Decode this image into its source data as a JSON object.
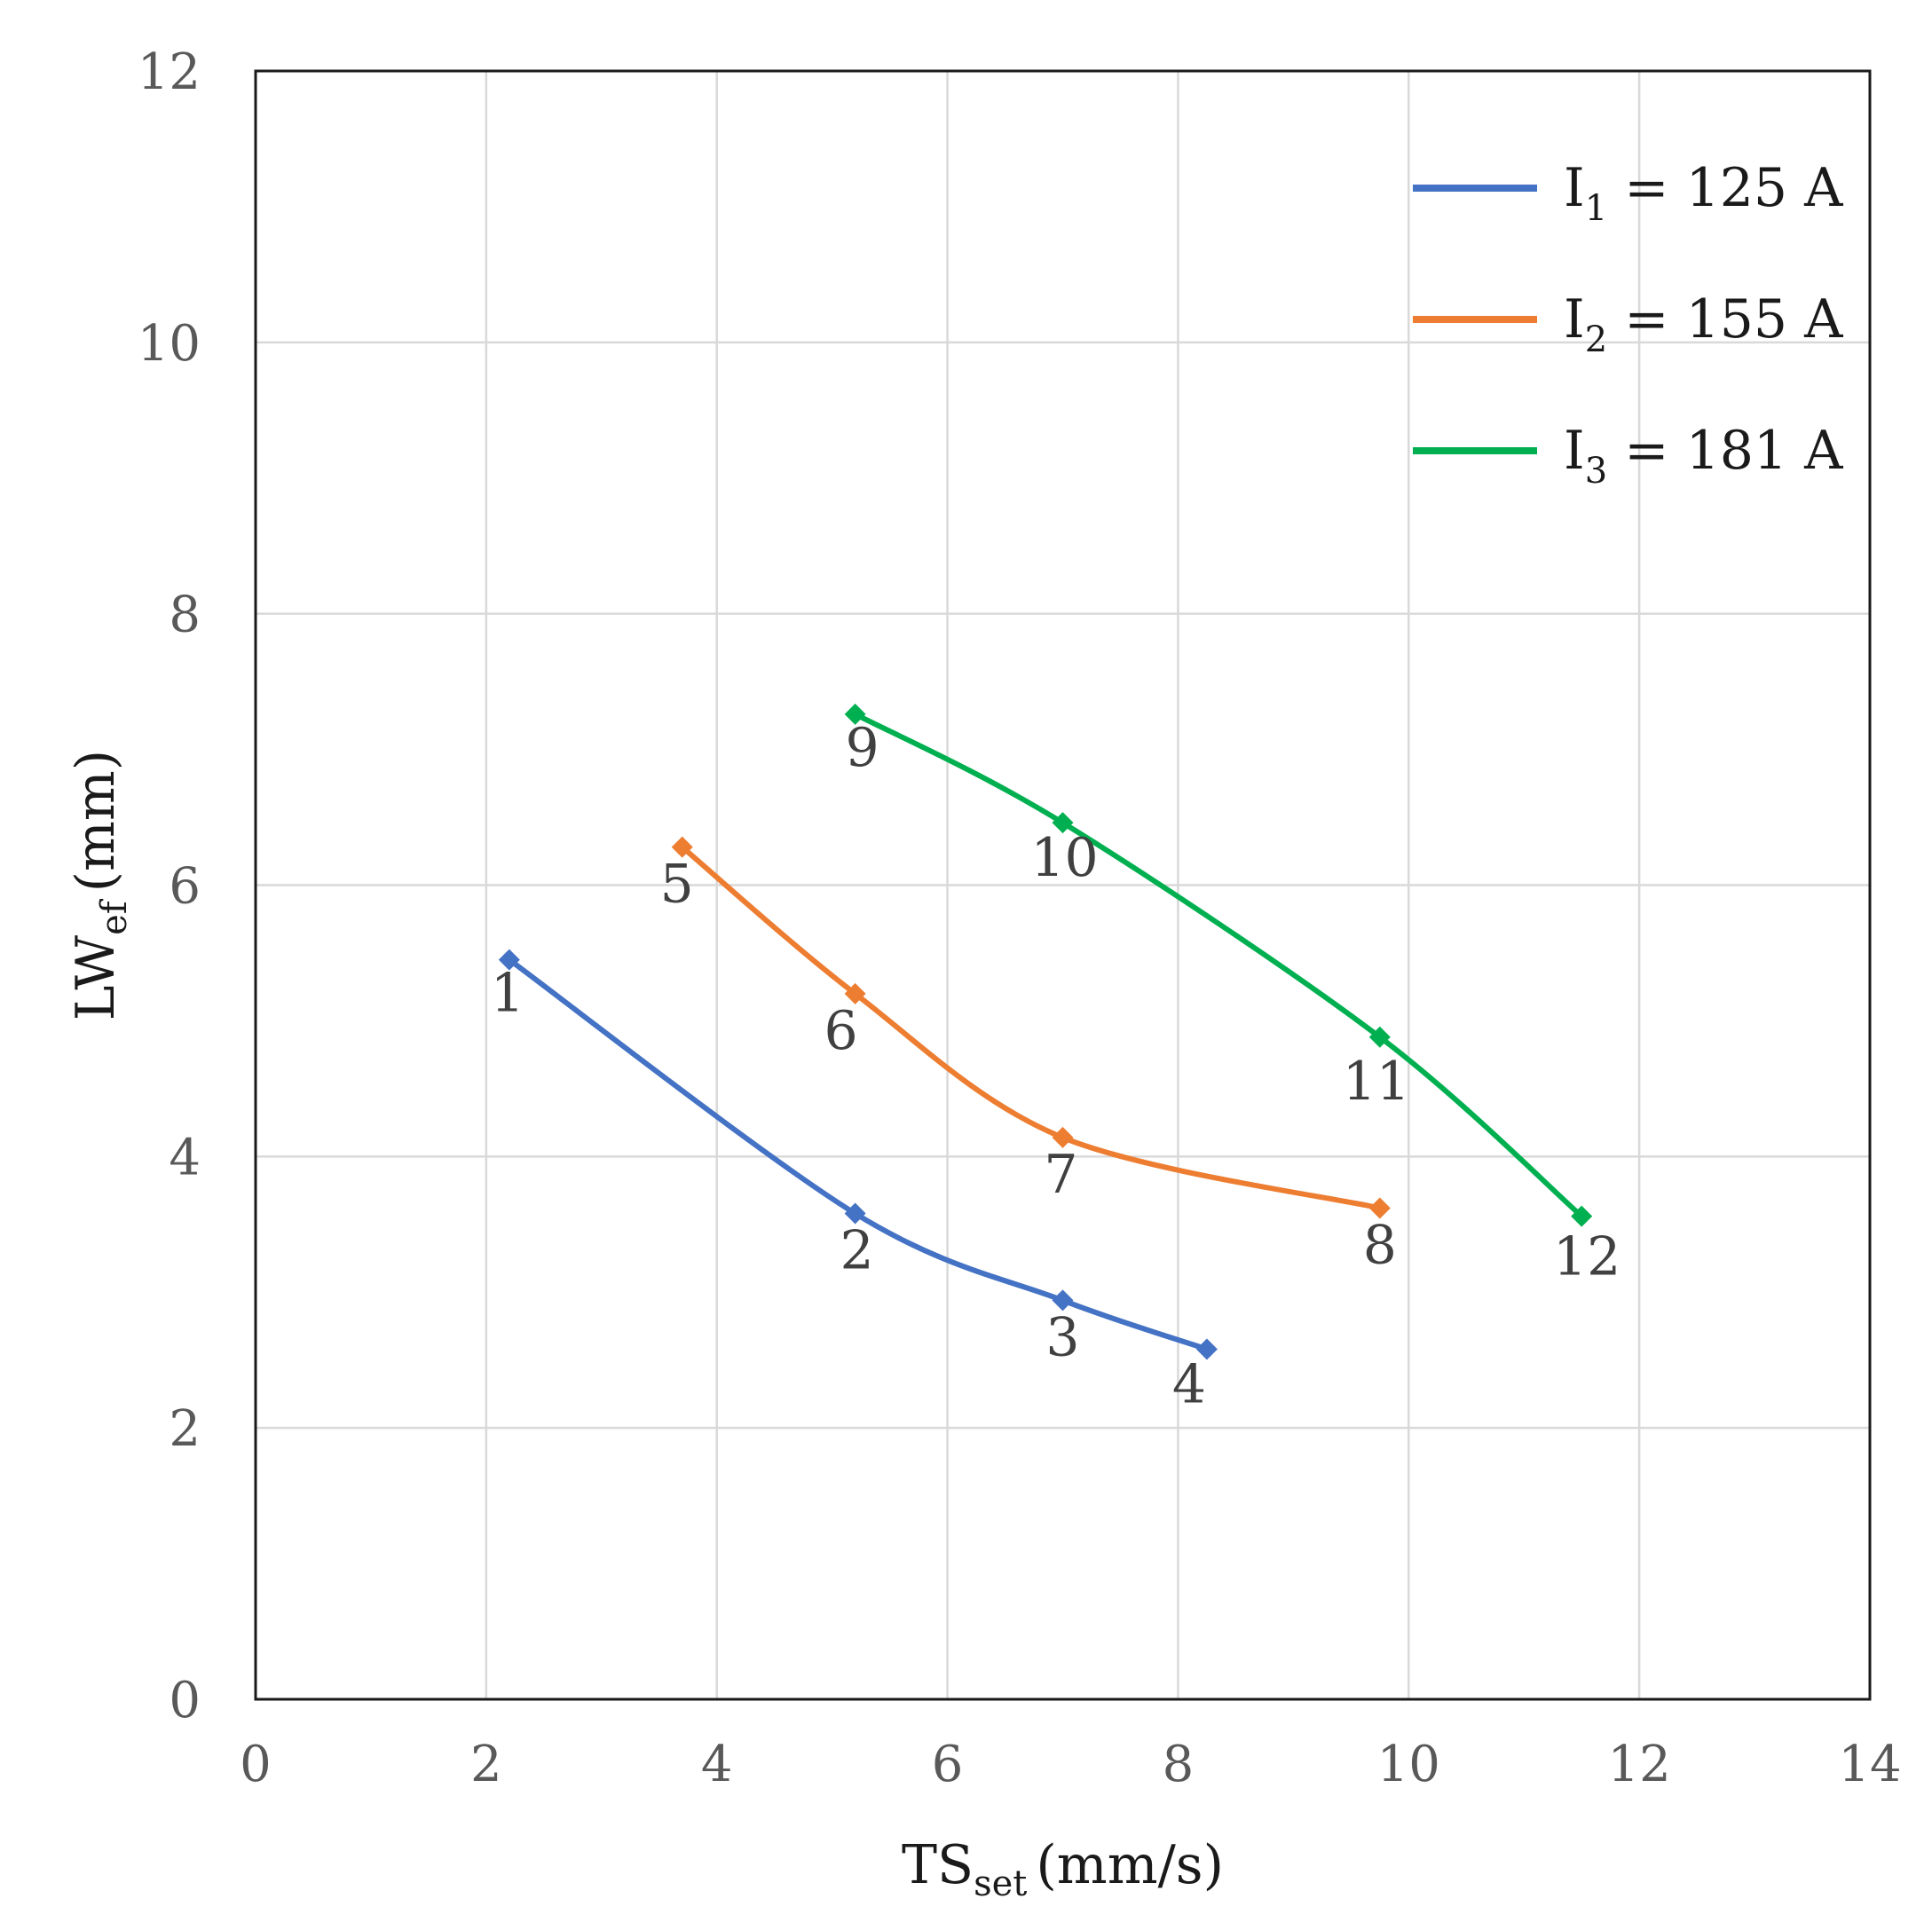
{
  "chart_data": {
    "type": "line",
    "title": "",
    "xlabel": {
      "main": "TS",
      "sub": "set",
      "unit": "(mm/s)"
    },
    "ylabel": {
      "main": "LW",
      "sub": "ef",
      "unit": "(mm)"
    },
    "xlim": [
      0,
      14
    ],
    "ylim": [
      0,
      12
    ],
    "xticks": [
      "0",
      "2",
      "4",
      "6",
      "8",
      "10",
      "12",
      "14"
    ],
    "yticks": [
      "0",
      "2",
      "4",
      "6",
      "8",
      "10",
      "12"
    ],
    "grid": true,
    "legend_position": "top-right",
    "series": [
      {
        "name": "I1 = 125 A",
        "legend": {
          "symbol": "I",
          "sub": "1",
          "text": " = 125 A"
        },
        "color": "#4472C4",
        "x": [
          2.2,
          5.2,
          7.0,
          8.25
        ],
        "y": [
          5.45,
          3.58,
          2.94,
          2.58
        ],
        "labels": [
          "1",
          "2",
          "3",
          "4"
        ]
      },
      {
        "name": "I2 = 155 A",
        "legend": {
          "symbol": "I",
          "sub": "2",
          "text": " = 155 A"
        },
        "color": "#ED7D31",
        "x": [
          3.7,
          5.2,
          7.0,
          9.75
        ],
        "y": [
          6.28,
          5.2,
          4.14,
          3.62
        ],
        "labels": [
          "5",
          "6",
          "7",
          "8"
        ]
      },
      {
        "name": "I3 = 181 A",
        "legend": {
          "symbol": "I",
          "sub": "3",
          "text": " = 181 A"
        },
        "color": "#00B050",
        "x": [
          5.2,
          7.0,
          9.75,
          11.5
        ],
        "y": [
          7.26,
          6.46,
          4.88,
          3.56
        ],
        "labels": [
          "9",
          "10",
          "11",
          "12"
        ]
      }
    ]
  }
}
